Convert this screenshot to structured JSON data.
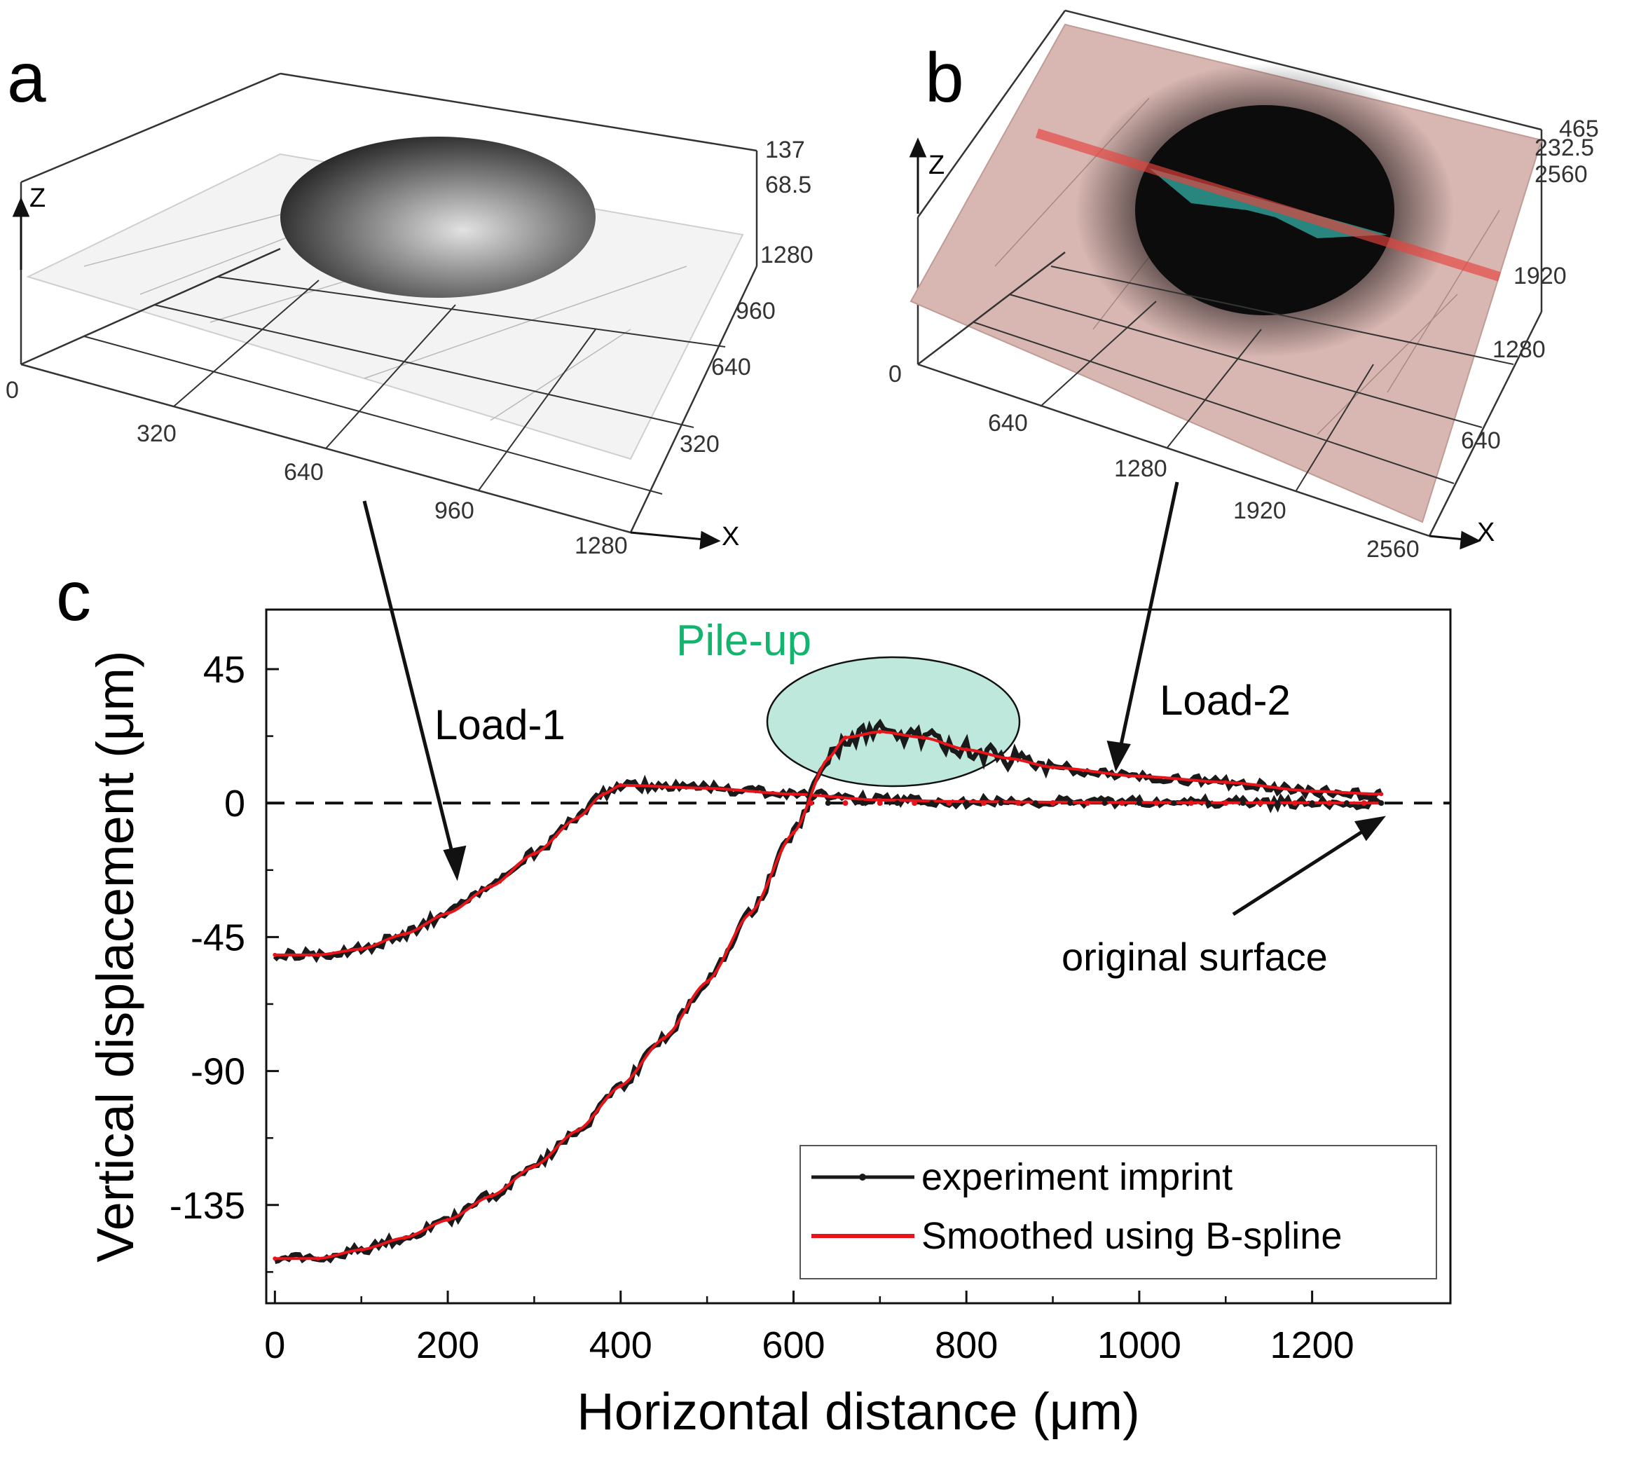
{
  "panel_a": {
    "label": "a",
    "axis_x_label": "X",
    "axis_z_label": "Z",
    "x_ticks": [
      "320",
      "640",
      "960",
      "1280"
    ],
    "y_ticks": [
      "320",
      "640",
      "960",
      "1280"
    ],
    "z_ticks": [
      "68.5",
      "137"
    ],
    "origin_label": "0",
    "surface_color": "#f1f1f1"
  },
  "panel_b": {
    "label": "b",
    "axis_x_label": "X",
    "axis_z_label": "Z",
    "x_ticks": [
      "640",
      "1280",
      "1920",
      "2560"
    ],
    "y_ticks": [
      "640",
      "1280",
      "1920",
      "2560"
    ],
    "z_ticks": [
      "232.5",
      "465"
    ],
    "origin_label": "0",
    "surface_color": "#d9b8b3",
    "section_color": "#e8423e",
    "section_fill_color": "#2e9c94"
  },
  "chart_data": {
    "panel_label": "c",
    "type": "line",
    "xlabel": "Horizontal distance (μm)",
    "ylabel": "Vertical displacement (μm)",
    "xlim": [
      -10,
      1360
    ],
    "ylim": [
      -168,
      65
    ],
    "x_ticks": [
      0,
      200,
      400,
      600,
      800,
      1000,
      1200
    ],
    "y_ticks": [
      45,
      0,
      -45,
      -90,
      -135
    ],
    "y_tick_labels": [
      "45",
      "0",
      "-45",
      "-90",
      "-135"
    ],
    "annotations": {
      "pile_up": "Pile-up",
      "load_1": "Load-1",
      "load_2": "Load-2",
      "original_surface": "original surface"
    },
    "legend": [
      {
        "label": "experiment imprint",
        "color": "#1a1a1a"
      },
      {
        "label": "Smoothed using B-spline",
        "color": "#e8141a"
      }
    ],
    "colors": {
      "pile_up_fill": "#bfe8dc",
      "pile_up_text": "#14b36e"
    },
    "series": [
      {
        "name": "Load-1",
        "x": [
          0,
          50,
          100,
          150,
          200,
          250,
          300,
          350,
          380,
          400,
          500,
          600,
          700,
          800,
          900,
          1000,
          1100,
          1200,
          1280
        ],
        "values": [
          -51,
          -51,
          -49,
          -44,
          -37,
          -28,
          -17,
          -5,
          3,
          6,
          5,
          3,
          1,
          0.5,
          0.3,
          0.2,
          0.1,
          0.1,
          0
        ]
      },
      {
        "name": "Load-2",
        "x": [
          0,
          50,
          100,
          150,
          200,
          250,
          300,
          350,
          400,
          450,
          500,
          550,
          600,
          640,
          660,
          700,
          750,
          800,
          850,
          900,
          1000,
          1100,
          1200,
          1280
        ],
        "values": [
          -153,
          -153,
          -150,
          -146,
          -140,
          -132,
          -122,
          -110,
          -95,
          -79,
          -60,
          -37,
          -10,
          15,
          22,
          24,
          22,
          18,
          15,
          12,
          9,
          7,
          4,
          3
        ]
      }
    ]
  }
}
